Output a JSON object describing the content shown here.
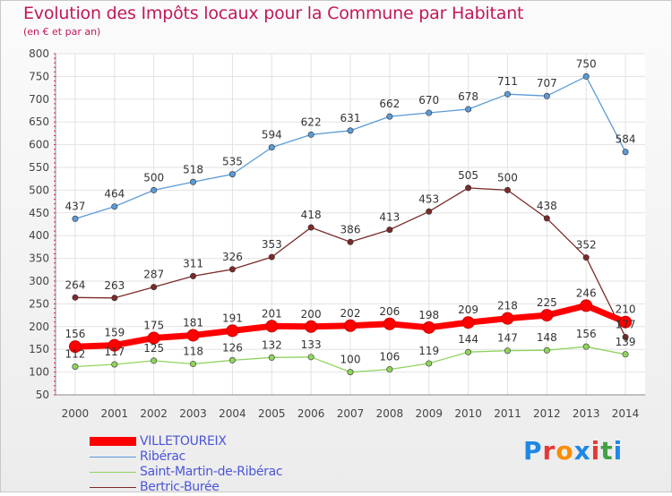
{
  "header": {
    "title": "Evolution des Impôts locaux pour la Commune par Habitant",
    "subtitle": "(en € et par an)"
  },
  "logo": {
    "text": "Proxiti",
    "colors": [
      "#1e88e5",
      "#e53935",
      "#fb8c00",
      "#1e88e5",
      "#e53935",
      "#43a047",
      "#1e88e5"
    ]
  },
  "chart_data": {
    "type": "line",
    "x": [
      "2000",
      "2001",
      "2002",
      "2003",
      "2004",
      "2005",
      "2006",
      "2007",
      "2008",
      "2009",
      "2010",
      "2011",
      "2012",
      "2013",
      "2014"
    ],
    "ylim": [
      50,
      800
    ],
    "yticks": [
      50,
      100,
      150,
      200,
      250,
      300,
      350,
      400,
      450,
      500,
      550,
      600,
      650,
      700,
      750,
      800
    ],
    "grid": true,
    "legend_position": "bottom-left",
    "series": [
      {
        "name": "VILLETOUREIX",
        "color": "#ff0000",
        "values": [
          156,
          159,
          175,
          181,
          191,
          201,
          200,
          202,
          206,
          198,
          209,
          218,
          225,
          246,
          210
        ]
      },
      {
        "name": "Ribérac",
        "color": "#5b9bd5",
        "values": [
          437,
          464,
          500,
          518,
          535,
          594,
          622,
          631,
          662,
          670,
          678,
          711,
          707,
          750,
          584
        ]
      },
      {
        "name": "Saint-Martin-de-Ribérac",
        "color": "#8fd45e",
        "values": [
          112,
          117,
          125,
          118,
          126,
          132,
          133,
          100,
          106,
          119,
          144,
          147,
          148,
          156,
          139
        ]
      },
      {
        "name": "Bertric-Burée",
        "color": "#7b2a2a",
        "values": [
          264,
          263,
          287,
          311,
          326,
          353,
          418,
          386,
          413,
          453,
          505,
          500,
          438,
          352,
          177
        ]
      }
    ]
  }
}
